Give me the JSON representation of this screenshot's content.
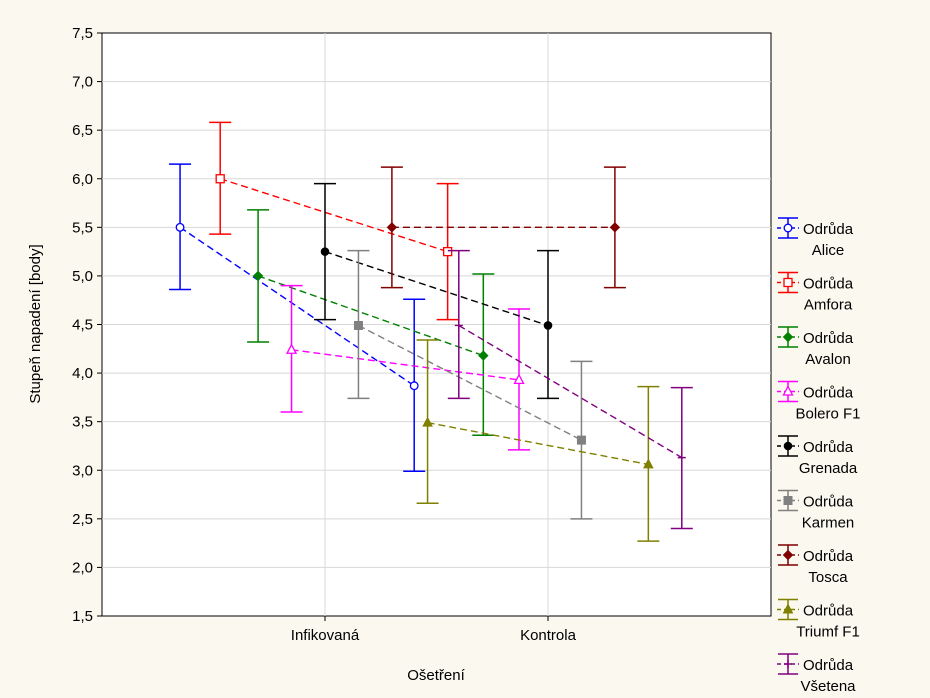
{
  "chart_data": {
    "type": "line",
    "title": "",
    "xlabel": "Ošetření",
    "ylabel": "Stupeň napadení [body]",
    "ylim": [
      1.5,
      7.5
    ],
    "yticks": [
      "1,5",
      "2,0",
      "2,5",
      "3,0",
      "3,5",
      "4,0",
      "4,5",
      "5,0",
      "5,5",
      "6,0",
      "6,5",
      "7,0",
      "7,5"
    ],
    "categories": [
      "Infikovaná",
      "Kontrola"
    ],
    "grid": true,
    "legend_position": "right",
    "error_bars": true,
    "series": [
      {
        "name_line1": "Odrůda",
        "name_line2": "Alice",
        "color": "#0000ff",
        "marker": "circle-open",
        "x": [
          -0.65,
          0.4
        ],
        "values": [
          5.5,
          3.87
        ],
        "lower": [
          4.86,
          2.99
        ],
        "upper": [
          6.15,
          4.76
        ]
      },
      {
        "name_line1": "Odrůda",
        "name_line2": "Amfora",
        "color": "#ff0000",
        "marker": "square-open",
        "x": [
          -0.47,
          0.55
        ],
        "values": [
          6.0,
          5.25
        ],
        "lower": [
          5.43,
          4.55
        ],
        "upper": [
          6.58,
          5.95
        ]
      },
      {
        "name_line1": "Odrůda",
        "name_line2": "Avalon",
        "color": "#008000",
        "marker": "diamond",
        "x": [
          -0.3,
          0.71
        ],
        "values": [
          5.0,
          4.18
        ],
        "lower": [
          4.32,
          3.36
        ],
        "upper": [
          5.68,
          5.02
        ]
      },
      {
        "name_line1": "Odrůda",
        "name_line2": "Bolero F1",
        "color": "#ff00ff",
        "marker": "triangle-open",
        "x": [
          -0.15,
          0.87
        ],
        "values": [
          4.24,
          3.93
        ],
        "lower": [
          3.6,
          3.21
        ],
        "upper": [
          4.9,
          4.66
        ]
      },
      {
        "name_line1": "Odrůda",
        "name_line2": "Grenada",
        "color": "#000000",
        "marker": "circle",
        "x": [
          0.0,
          1.0
        ],
        "values": [
          5.25,
          4.49
        ],
        "lower": [
          4.55,
          3.74
        ],
        "upper": [
          5.95,
          5.26
        ]
      },
      {
        "name_line1": "Odrůda",
        "name_line2": "Karmen",
        "color": "#808080",
        "marker": "square",
        "x": [
          0.15,
          1.15
        ],
        "values": [
          4.49,
          3.31
        ],
        "lower": [
          3.74,
          2.5
        ],
        "upper": [
          5.26,
          4.12
        ]
      },
      {
        "name_line1": "Odrůda",
        "name_line2": "Tosca",
        "color": "#800000",
        "marker": "diamond",
        "x": [
          0.3,
          1.3
        ],
        "values": [
          5.5,
          5.5
        ],
        "lower": [
          4.88,
          4.88
        ],
        "upper": [
          6.12,
          6.12
        ]
      },
      {
        "name_line1": "Odrůda",
        "name_line2": "Triumf F1",
        "color": "#808000",
        "marker": "triangle",
        "x": [
          0.46,
          1.45
        ],
        "values": [
          3.49,
          3.06
        ],
        "lower": [
          2.66,
          2.27
        ],
        "upper": [
          4.34,
          3.86
        ]
      },
      {
        "name_line1": "Odrůda",
        "name_line2": "Všetena",
        "color": "#800080",
        "marker": "plus",
        "x": [
          0.6,
          1.6
        ],
        "values": [
          4.49,
          3.13
        ],
        "lower": [
          3.74,
          2.4
        ],
        "upper": [
          5.26,
          3.85
        ]
      }
    ]
  }
}
